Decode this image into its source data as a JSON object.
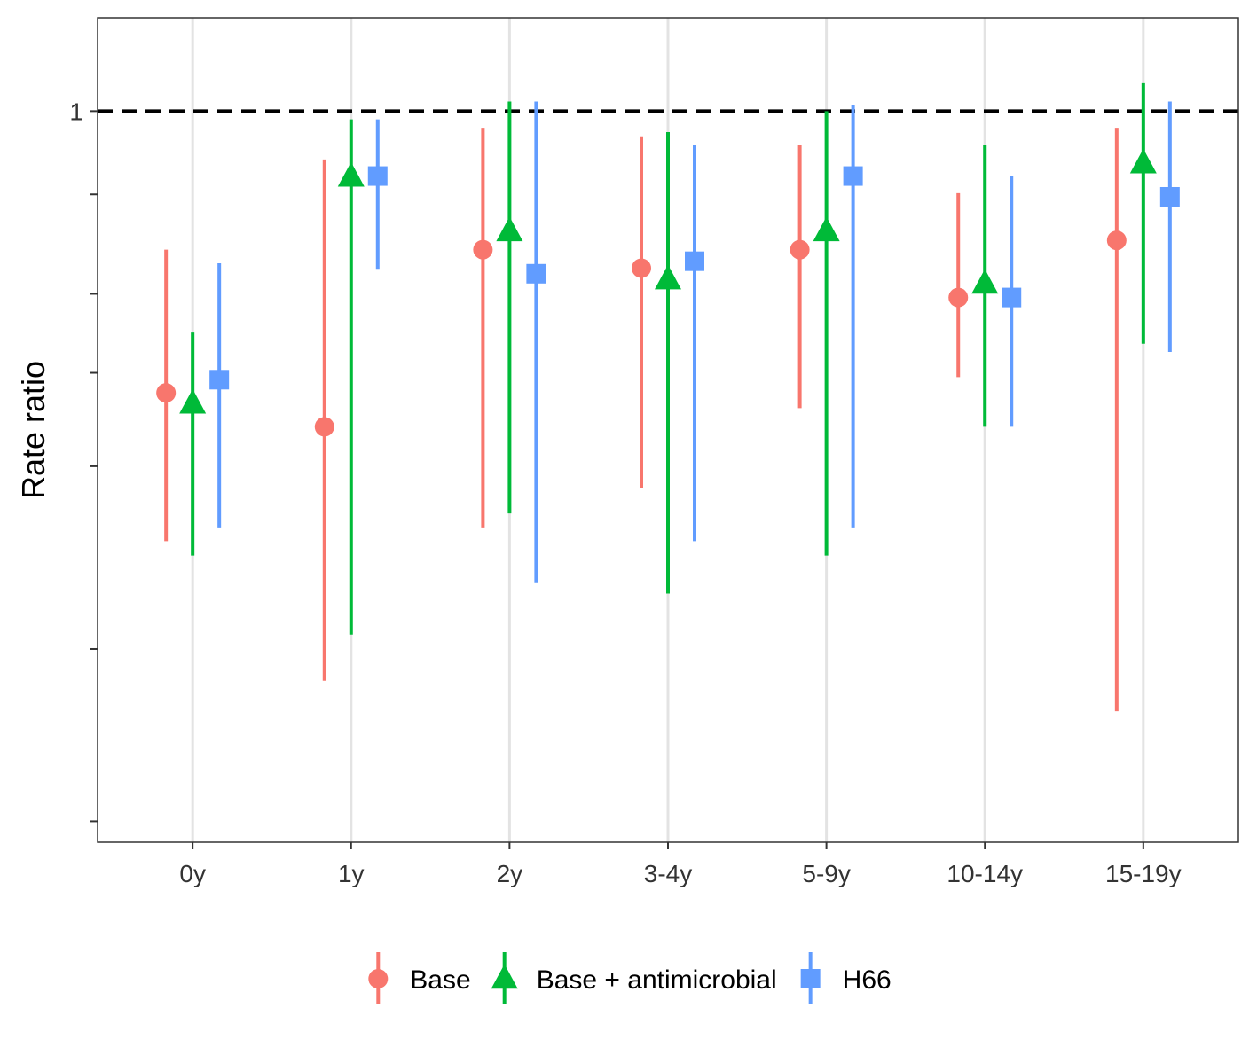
{
  "chart_data": {
    "type": "scatter",
    "subtype": "point-range",
    "title": "",
    "xlabel": "",
    "ylabel": "Rate ratio",
    "y_scale": "log",
    "ylim": [
      0.24,
      1.2
    ],
    "yticks": [
      0.25,
      0.35,
      0.5,
      0.6,
      0.7,
      0.85,
      1.0
    ],
    "ytick_labels": [
      "",
      "",
      "",
      "",
      "",
      "",
      "1"
    ],
    "reference_line": 1.0,
    "categories": [
      "0y",
      "1y",
      "2y",
      "3-4y",
      "5-9y",
      "10-14y",
      "15-19y"
    ],
    "series": [
      {
        "name": "Base",
        "color": "#F8766D",
        "shape": "circle",
        "values": [
          0.577,
          0.54,
          0.763,
          0.736,
          0.763,
          0.695,
          0.777
        ],
        "lower": [
          0.432,
          0.329,
          0.443,
          0.479,
          0.56,
          0.595,
          0.31
        ],
        "upper": [
          0.763,
          0.91,
          0.968,
          0.952,
          0.936,
          0.852,
          0.968
        ]
      },
      {
        "name": "Base + antimicrobial",
        "color": "#00BA38",
        "shape": "triangle",
        "values": [
          0.565,
          0.88,
          0.791,
          0.72,
          0.791,
          0.714,
          0.903
        ],
        "lower": [
          0.42,
          0.36,
          0.456,
          0.39,
          0.42,
          0.54,
          0.635
        ],
        "upper": [
          0.649,
          0.984,
          1.019,
          0.96,
          1.0,
          0.936,
          1.056
        ]
      },
      {
        "name": "H66",
        "color": "#619CFF",
        "shape": "square",
        "values": [
          0.592,
          0.881,
          0.728,
          0.746,
          0.881,
          0.695,
          0.846
        ],
        "lower": [
          0.443,
          0.735,
          0.398,
          0.432,
          0.443,
          0.54,
          0.625
        ],
        "upper": [
          0.743,
          0.984,
          1.019,
          0.936,
          1.012,
          0.881,
          1.019
        ]
      }
    ],
    "grid": "vertical-major",
    "legend_position": "bottom"
  }
}
